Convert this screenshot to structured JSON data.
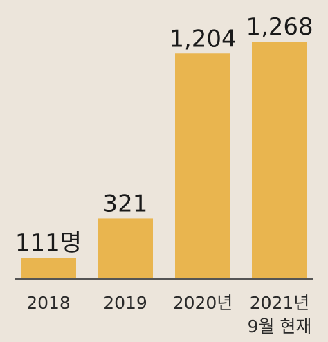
{
  "chart_data": {
    "type": "bar",
    "categories": [
      "2018",
      "2019",
      "2020년",
      "2021년"
    ],
    "category_sublabels": [
      "",
      "",
      "",
      "9월 현재"
    ],
    "values": [
      111,
      321,
      1204,
      1268
    ],
    "value_labels": [
      "111명",
      "321",
      "1,204",
      "1,268"
    ],
    "title": "",
    "xlabel": "",
    "ylabel": "",
    "ylim": [
      0,
      1268
    ],
    "grid": false,
    "legend": "none",
    "bar_color": "#e9b54f",
    "baseline_color": "#555555"
  }
}
